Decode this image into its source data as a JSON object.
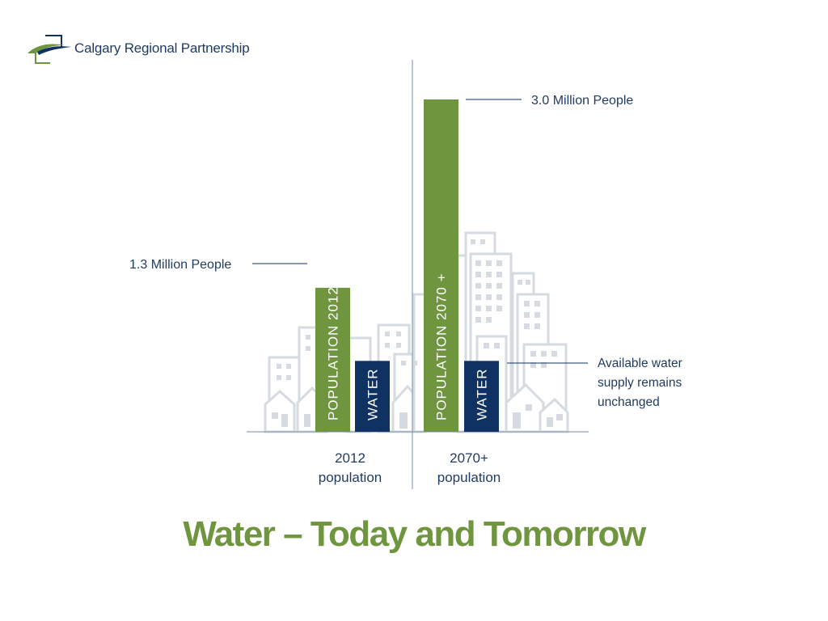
{
  "logo": {
    "text": "Calgary Regional Partnership",
    "icon": "crp-logo-icon"
  },
  "page_title": "Water – Today and Tomorrow",
  "colors": {
    "population": "#6f953f",
    "water": "#0f3263",
    "buildings": "#d6dbe1",
    "axis": "#8ea0b3",
    "text": "#1f3a5f"
  },
  "chart_data": {
    "type": "bar",
    "title": "Water – Today and Tomorrow",
    "xlabel": "",
    "ylabel": "",
    "ylim": [
      0,
      3.5
    ],
    "grid": false,
    "categories": [
      "2012\npopulation",
      "2070+\npopulation"
    ],
    "series": [
      {
        "bar_labels": [
          "POPULATION 2012",
          "POPULATION 2070 +"
        ],
        "values": [
          1.3,
          3.0
        ]
      },
      {
        "bar_labels": [
          "WATER",
          "WATER"
        ],
        "values": [
          0.64,
          0.64
        ]
      }
    ],
    "annotations": {
      "pop_2012": "1.3 Million People",
      "pop_2070": "3.0 Million People",
      "water_note": "Available water\nsupply remains\nunchanged"
    }
  }
}
